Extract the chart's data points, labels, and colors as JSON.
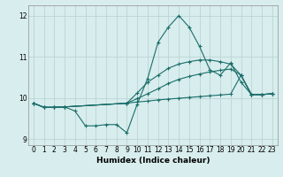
{
  "xlabel": "Humidex (Indice chaleur)",
  "bg_color": "#d8eded",
  "grid_color": "#b8d0d0",
  "line_color": "#1a6e6a",
  "xlim": [
    -0.5,
    23.5
  ],
  "ylim": [
    8.85,
    12.25
  ],
  "yticks": [
    9,
    10,
    11,
    12
  ],
  "xticks": [
    0,
    1,
    2,
    3,
    4,
    5,
    6,
    7,
    8,
    9,
    10,
    11,
    12,
    13,
    14,
    15,
    16,
    17,
    18,
    19,
    20,
    21,
    22,
    23
  ],
  "line1_x": [
    0,
    1,
    2,
    3,
    4,
    5,
    6,
    7,
    8,
    9,
    10,
    11,
    12,
    13,
    14,
    15,
    16,
    17,
    18,
    19,
    20,
    21,
    22,
    23
  ],
  "line1_y": [
    9.87,
    9.77,
    9.77,
    9.78,
    9.68,
    9.32,
    9.32,
    9.35,
    9.35,
    9.15,
    9.85,
    10.47,
    11.35,
    11.72,
    12.0,
    11.72,
    11.25,
    10.68,
    10.55,
    10.85,
    10.38,
    10.08,
    10.08,
    10.1
  ],
  "line2_x": [
    0,
    1,
    2,
    3,
    9,
    10,
    11,
    12,
    13,
    14,
    15,
    16,
    17,
    18,
    19,
    20,
    21,
    22,
    23
  ],
  "line2_y": [
    9.87,
    9.77,
    9.77,
    9.78,
    9.87,
    10.12,
    10.38,
    10.55,
    10.72,
    10.82,
    10.88,
    10.92,
    10.92,
    10.88,
    10.82,
    10.55,
    10.08,
    10.08,
    10.1
  ],
  "line3_x": [
    0,
    1,
    2,
    3,
    9,
    10,
    11,
    12,
    13,
    14,
    15,
    16,
    17,
    18,
    19,
    20,
    21,
    22,
    23
  ],
  "line3_y": [
    9.87,
    9.77,
    9.77,
    9.78,
    9.87,
    9.98,
    10.1,
    10.22,
    10.35,
    10.45,
    10.52,
    10.58,
    10.63,
    10.67,
    10.7,
    10.55,
    10.08,
    10.08,
    10.1
  ],
  "line4_x": [
    0,
    1,
    2,
    3,
    9,
    10,
    11,
    12,
    13,
    14,
    15,
    16,
    17,
    18,
    19,
    20,
    21,
    22,
    23
  ],
  "line4_y": [
    9.87,
    9.77,
    9.77,
    9.78,
    9.87,
    9.9,
    9.92,
    9.95,
    9.97,
    9.99,
    10.01,
    10.03,
    10.05,
    10.07,
    10.09,
    10.55,
    10.08,
    10.08,
    10.1
  ]
}
